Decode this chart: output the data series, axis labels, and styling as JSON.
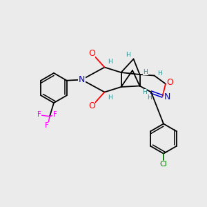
{
  "bg_color": "#ebebeb",
  "atom_colors": {
    "O": "#ff0000",
    "N": "#0000cc",
    "F": "#ff00ff",
    "Cl": "#008000",
    "H": "#2e8b8b",
    "C": "#000000"
  },
  "figsize": [
    3.0,
    3.0
  ],
  "dpi": 100
}
